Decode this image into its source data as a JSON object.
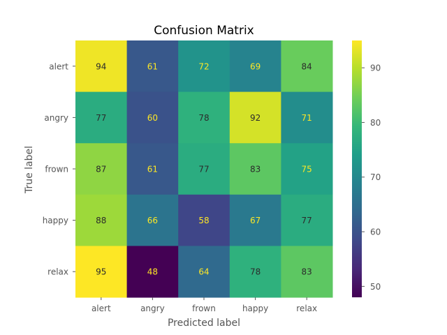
{
  "chart_data": {
    "type": "heatmap",
    "title": "Confusion Matrix",
    "xlabel": "Predicted label",
    "ylabel": "True label",
    "x_categories": [
      "alert",
      "angry",
      "frown",
      "happy",
      "relax"
    ],
    "y_categories": [
      "alert",
      "angry",
      "frown",
      "happy",
      "relax"
    ],
    "values": [
      [
        94,
        61,
        72,
        69,
        84
      ],
      [
        77,
        60,
        78,
        92,
        71
      ],
      [
        87,
        61,
        77,
        83,
        75
      ],
      [
        88,
        66,
        58,
        67,
        77
      ],
      [
        95,
        48,
        64,
        78,
        83
      ]
    ],
    "colorbar": {
      "min": 48,
      "max": 95,
      "ticks": [
        50,
        60,
        70,
        80,
        90
      ]
    },
    "colormap": "viridis",
    "grid": false
  }
}
